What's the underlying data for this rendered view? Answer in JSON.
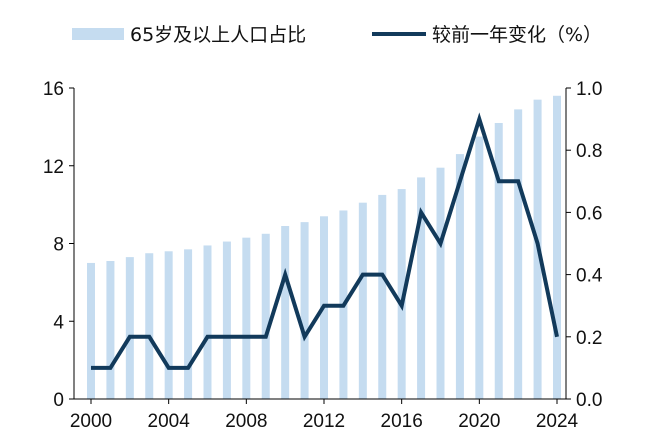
{
  "chart_data": {
    "type": "bar",
    "title": "",
    "x": [
      2000,
      2001,
      2002,
      2003,
      2004,
      2005,
      2006,
      2007,
      2008,
      2009,
      2010,
      2011,
      2012,
      2013,
      2014,
      2015,
      2016,
      2017,
      2018,
      2019,
      2020,
      2021,
      2022,
      2023,
      2024
    ],
    "xticks": [
      "2000",
      "2004",
      "2008",
      "2012",
      "2016",
      "2020",
      "2024"
    ],
    "y_left_ticks": [
      "0",
      "4",
      "8",
      "12",
      "16"
    ],
    "y_right_ticks": [
      "0.0",
      "0.2",
      "0.4",
      "0.6",
      "0.8",
      "1.0"
    ],
    "ylim_left": [
      0,
      16
    ],
    "ylim_right": [
      0,
      1.0
    ],
    "grid": false,
    "legend_position": "top",
    "series": [
      {
        "name": "65岁及以上人口占比",
        "type": "bar",
        "axis": "left",
        "color": "#c5dcf0",
        "values": [
          7.0,
          7.1,
          7.3,
          7.5,
          7.6,
          7.7,
          7.9,
          8.1,
          8.3,
          8.5,
          8.9,
          9.1,
          9.4,
          9.7,
          10.1,
          10.5,
          10.8,
          11.4,
          11.9,
          12.6,
          13.5,
          14.2,
          14.9,
          15.4,
          15.6
        ]
      },
      {
        "name": "较前一年变化（%）",
        "type": "line",
        "axis": "right",
        "color": "#123a5b",
        "values": [
          0.1,
          0.1,
          0.2,
          0.2,
          0.1,
          0.1,
          0.2,
          0.2,
          0.2,
          0.2,
          0.4,
          0.2,
          0.3,
          0.3,
          0.4,
          0.4,
          0.3,
          0.6,
          0.5,
          0.7,
          0.9,
          0.7,
          0.7,
          0.5,
          0.2
        ]
      }
    ]
  }
}
